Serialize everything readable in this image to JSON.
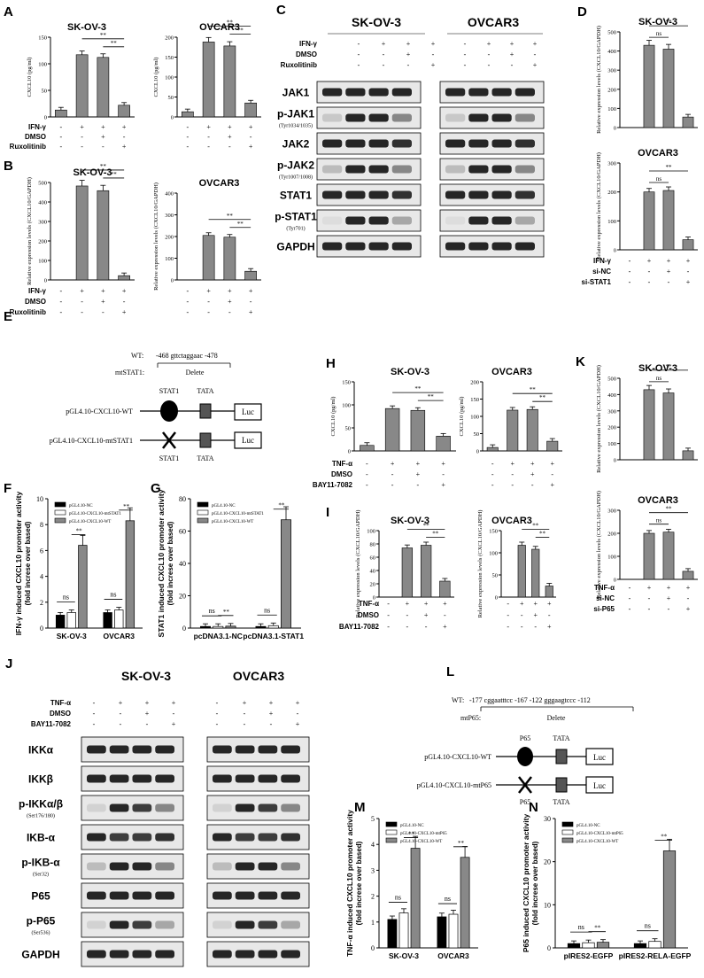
{
  "panels": {
    "A": {
      "letter": "A",
      "left": {
        "title": "SK-OV-3",
        "ylabel": "CXCL10 (pg/ml)",
        "yticks": [
          "0",
          "50",
          "100",
          "150"
        ],
        "values": [
          13,
          117,
          112,
          22
        ]
      },
      "right": {
        "title": "OVCAR3",
        "ylabel": "CXCL10 (pg/ml)",
        "yticks": [
          "0",
          "50",
          "100",
          "150",
          "200"
        ],
        "values": [
          13,
          188,
          178,
          35
        ]
      },
      "rows": [
        {
          "label": "IFN-γ",
          "marks": [
            "-",
            "+",
            "+",
            "+"
          ]
        },
        {
          "label": "DMSO",
          "marks": [
            "-",
            "-",
            "+",
            "-"
          ]
        },
        {
          "label": "Ruxolitinib",
          "marks": [
            "-",
            "-",
            "-",
            "+"
          ]
        }
      ],
      "sig": "**"
    },
    "B": {
      "letter": "B",
      "left": {
        "title": "SK-OV-3",
        "ylabel": "Relative expression levels (CXCL10/GAPDH)",
        "yticks": [
          "0",
          "100",
          "200",
          "300",
          "400",
          "500"
        ],
        "values": [
          0,
          482,
          458,
          22
        ]
      },
      "right": {
        "title": "OVCAR3",
        "ylabel": "Relative expression levels (CXCL10/GAPDH)",
        "yticks": [
          "0",
          "100",
          "200",
          "300",
          "400"
        ],
        "values": [
          0,
          205,
          197,
          40
        ]
      },
      "rows": [
        {
          "label": "IFN-γ",
          "marks": [
            "-",
            "+",
            "+",
            "+"
          ]
        },
        {
          "label": "DMSO",
          "marks": [
            "-",
            "-",
            "+",
            "-"
          ]
        },
        {
          "label": "Ruxolitinib",
          "marks": [
            "-",
            "-",
            "-",
            "+"
          ]
        }
      ],
      "sig": "**"
    },
    "C": {
      "letter": "C",
      "cell_a": "SK-OV-3",
      "cell_b": "OVCAR3",
      "rows": [
        {
          "label": "IFN-γ",
          "marks": [
            "-",
            "+",
            "+",
            "+"
          ]
        },
        {
          "label": "DMSO",
          "marks": [
            "-",
            "-",
            "+",
            "-"
          ]
        },
        {
          "label": "Ruxolitinib",
          "marks": [
            "-",
            "-",
            "-",
            "+"
          ]
        }
      ],
      "blots": [
        {
          "name": "JAK1",
          "sub": ""
        },
        {
          "name": "p-JAK1",
          "sub": "(Tyr1034/1035)"
        },
        {
          "name": "JAK2",
          "sub": ""
        },
        {
          "name": "p-JAK2",
          "sub": "(Tyr1007/1008)"
        },
        {
          "name": "STAT1",
          "sub": ""
        },
        {
          "name": "p-STAT1",
          "sub": "(Tyr701)"
        },
        {
          "name": "GAPDH",
          "sub": ""
        }
      ]
    },
    "D": {
      "letter": "D",
      "top": {
        "title": "SK-OV-3",
        "ylabel": "Relative expression levels (CXCL10/GAPDH)",
        "yticks": [
          "0",
          "100",
          "200",
          "300",
          "400",
          "500"
        ],
        "values": [
          0,
          430,
          410,
          55
        ]
      },
      "bottom": {
        "title": "OVCAR3",
        "ylabel": "Relative expression levels (CXCL10/GAPDH)",
        "yticks": [
          "0",
          "100",
          "200",
          "300"
        ],
        "values": [
          0,
          200,
          205,
          35
        ]
      },
      "rows": [
        {
          "label": "IFN-γ",
          "marks": [
            "-",
            "+",
            "+",
            "+"
          ]
        },
        {
          "label": "si-NC",
          "marks": [
            "-",
            "-",
            "+",
            "-"
          ]
        },
        {
          "label": "si-STAT1",
          "marks": [
            "-",
            "-",
            "-",
            "+"
          ]
        }
      ],
      "ns": "ns",
      "sig": "**"
    },
    "E": {
      "letter": "E",
      "wt": "WT:",
      "wt_seq": "-468  gttctaggaac  -478",
      "mut": "mtSTAT1:",
      "delete": "Delete",
      "stat1": "STAT1",
      "tata": "TATA",
      "wt_construct": "pGL4.10-CXCL10-WT",
      "mut_construct": "pGL4.10-CXCL10-mtSTAT1",
      "luc": "Luc"
    },
    "F": {
      "letter": "F",
      "ylabel": "IFN-γ induced CXCL10 promoter activity",
      "ylabel2": "(fold increse over based)",
      "yticks": [
        "0",
        "2",
        "4",
        "6",
        "8",
        "10"
      ],
      "legend": [
        "pGL4.10-NC",
        "pGL4.10-CXCL10-mtSTAT1",
        "pGL4.10-CXCL10-WT"
      ],
      "groups": [
        "SK-OV-3",
        "OVCAR3"
      ],
      "values": [
        [
          1.0,
          1.2,
          6.4
        ],
        [
          1.2,
          1.4,
          8.3
        ]
      ],
      "ns": "ns",
      "sig": "**"
    },
    "G": {
      "letter": "G",
      "ylabel": "STAT1 induced CXCL10 promoter activity",
      "ylabel2": "(fold increse over based)",
      "yticks": [
        "0",
        "20",
        "40",
        "60",
        "80"
      ],
      "legend": [
        "pGL4.10-NC",
        "pGL4.10-CXCL10-mtSTAT1",
        "pGL4.10-CXCL10-WT"
      ],
      "groups": [
        "pcDNA3.1-NC",
        "pcDNA3.1-STAT1"
      ],
      "values": [
        [
          1,
          1,
          1.2
        ],
        [
          1,
          1.5,
          67
        ]
      ],
      "ns": "ns",
      "sig": "**"
    },
    "H": {
      "letter": "H",
      "left": {
        "title": "SK-OV-3",
        "ylabel": "CXCL10 (pg/ml)",
        "yticks": [
          "0",
          "50",
          "100",
          "150"
        ],
        "values": [
          12,
          92,
          88,
          32
        ]
      },
      "right": {
        "title": "OVCAR3",
        "ylabel": "CXCL10 (pg/ml)",
        "yticks": [
          "0",
          "50",
          "100",
          "150",
          "200"
        ],
        "values": [
          10,
          118,
          120,
          28
        ]
      },
      "rows": [
        {
          "label": "TNF-α",
          "marks": [
            "-",
            "+",
            "+",
            "+"
          ]
        },
        {
          "label": "DMSO",
          "marks": [
            "-",
            "-",
            "+",
            "-"
          ]
        },
        {
          "label": "BAY11-7082",
          "marks": [
            "-",
            "-",
            "-",
            "+"
          ]
        }
      ],
      "sig": "**"
    },
    "I": {
      "letter": "I",
      "left": {
        "title": "SK-OV-3",
        "ylabel": "Relative expression levels (CXCL10/GAPDH)",
        "yticks": [
          "0",
          "20",
          "40",
          "60",
          "80",
          "100"
        ],
        "values": [
          0,
          74,
          78,
          24
        ]
      },
      "right": {
        "title": "OVCAR3",
        "ylabel": "Relative expression levels (CXCL10/GAPDH)",
        "yticks": [
          "0",
          "50",
          "100",
          "150"
        ],
        "values": [
          0,
          117,
          108,
          25
        ]
      },
      "rows": [
        {
          "label": "TNF-α",
          "marks": [
            "-",
            "+",
            "+",
            "+"
          ]
        },
        {
          "label": "DMSO",
          "marks": [
            "-",
            "-",
            "+",
            "-"
          ]
        },
        {
          "label": "BAY11-7082",
          "marks": [
            "-",
            "-",
            "-",
            "+"
          ]
        }
      ],
      "sig": "**"
    },
    "J": {
      "letter": "J",
      "cell_a": "SK-OV-3",
      "cell_b": "OVCAR3",
      "rows": [
        {
          "label": "TNF-α",
          "marks": [
            "-",
            "+",
            "+",
            "+"
          ]
        },
        {
          "label": "DMSO",
          "marks": [
            "-",
            "-",
            "+",
            "-"
          ]
        },
        {
          "label": "BAY11-7082",
          "marks": [
            "-",
            "-",
            "-",
            "+"
          ]
        }
      ],
      "blots": [
        {
          "name": "IKKα",
          "sub": ""
        },
        {
          "name": "IKKβ",
          "sub": ""
        },
        {
          "name": "p-IKKα/β",
          "sub": "(Ser176/180)"
        },
        {
          "name": "IKB-α",
          "sub": ""
        },
        {
          "name": "p-IKB-α",
          "sub": "(Ser32)"
        },
        {
          "name": "P65",
          "sub": ""
        },
        {
          "name": "p-P65",
          "sub": "(Ser536)"
        },
        {
          "name": "GAPDH",
          "sub": ""
        }
      ]
    },
    "K": {
      "letter": "K",
      "top": {
        "title": "SK-OV-3",
        "ylabel": "Relative expression levels (CXCL10/GAPDH)",
        "yticks": [
          "0",
          "100",
          "200",
          "300",
          "400",
          "500"
        ],
        "values": [
          0,
          430,
          410,
          55
        ]
      },
      "bottom": {
        "title": "OVCAR3",
        "ylabel": "Relative expression levels (CXCL10/GAPDH)",
        "yticks": [
          "0",
          "100",
          "200",
          "300"
        ],
        "values": [
          0,
          200,
          205,
          35
        ]
      },
      "rows": [
        {
          "label": "TNF-α",
          "marks": [
            "-",
            "+",
            "+",
            "+"
          ]
        },
        {
          "label": "si-NC",
          "marks": [
            "-",
            "-",
            "+",
            "-"
          ]
        },
        {
          "label": "si-P65",
          "marks": [
            "-",
            "-",
            "-",
            "+"
          ]
        }
      ],
      "ns": "ns",
      "sig": "**"
    },
    "L": {
      "letter": "L",
      "wt": "WT:",
      "wt_seq": "-177   cggaatttcc  -167  -122   gggaagtccc   -112",
      "mut": "mtP65:",
      "delete": "Delete",
      "p65": "P65",
      "tata": "TATA",
      "wt_construct": "pGL4.10-CXCL10-WT",
      "mut_construct": "pGL4.10-CXCL10-mtP65",
      "luc": "Luc"
    },
    "M": {
      "letter": "M",
      "ylabel": "TNF-α induced CXCL10 promoter activity",
      "ylabel2": "(fold increse over based)",
      "yticks": [
        "0",
        "1",
        "2",
        "3",
        "4",
        "5"
      ],
      "legend": [
        "pGL4.10-NC",
        "pGL4.10-CXCL10-mtP65",
        "pGL4.10-CXCL10-WT"
      ],
      "groups": [
        "SK-OV-3",
        "OVCAR3"
      ],
      "values": [
        [
          1.1,
          1.35,
          3.85
        ],
        [
          1.2,
          1.3,
          3.5
        ]
      ],
      "ns": "ns",
      "sig": "**"
    },
    "N": {
      "letter": "N",
      "ylabel": "P65 induced CXCL10 promoter activity",
      "ylabel2": "(fold increse over based)",
      "yticks": [
        "0",
        "10",
        "20",
        "30"
      ],
      "legend": [
        "pGL4.10-NC",
        "pGL4.10-CXCL10-mtP65",
        "pGL4.10-CXCL10-WT"
      ],
      "groups": [
        "pIRES2-EGFP",
        "pIRES2-RELA-EGFP"
      ],
      "values": [
        [
          1,
          1.2,
          1.3
        ],
        [
          1,
          1.5,
          22.5
        ]
      ],
      "ns": "ns",
      "sig": "**"
    }
  }
}
